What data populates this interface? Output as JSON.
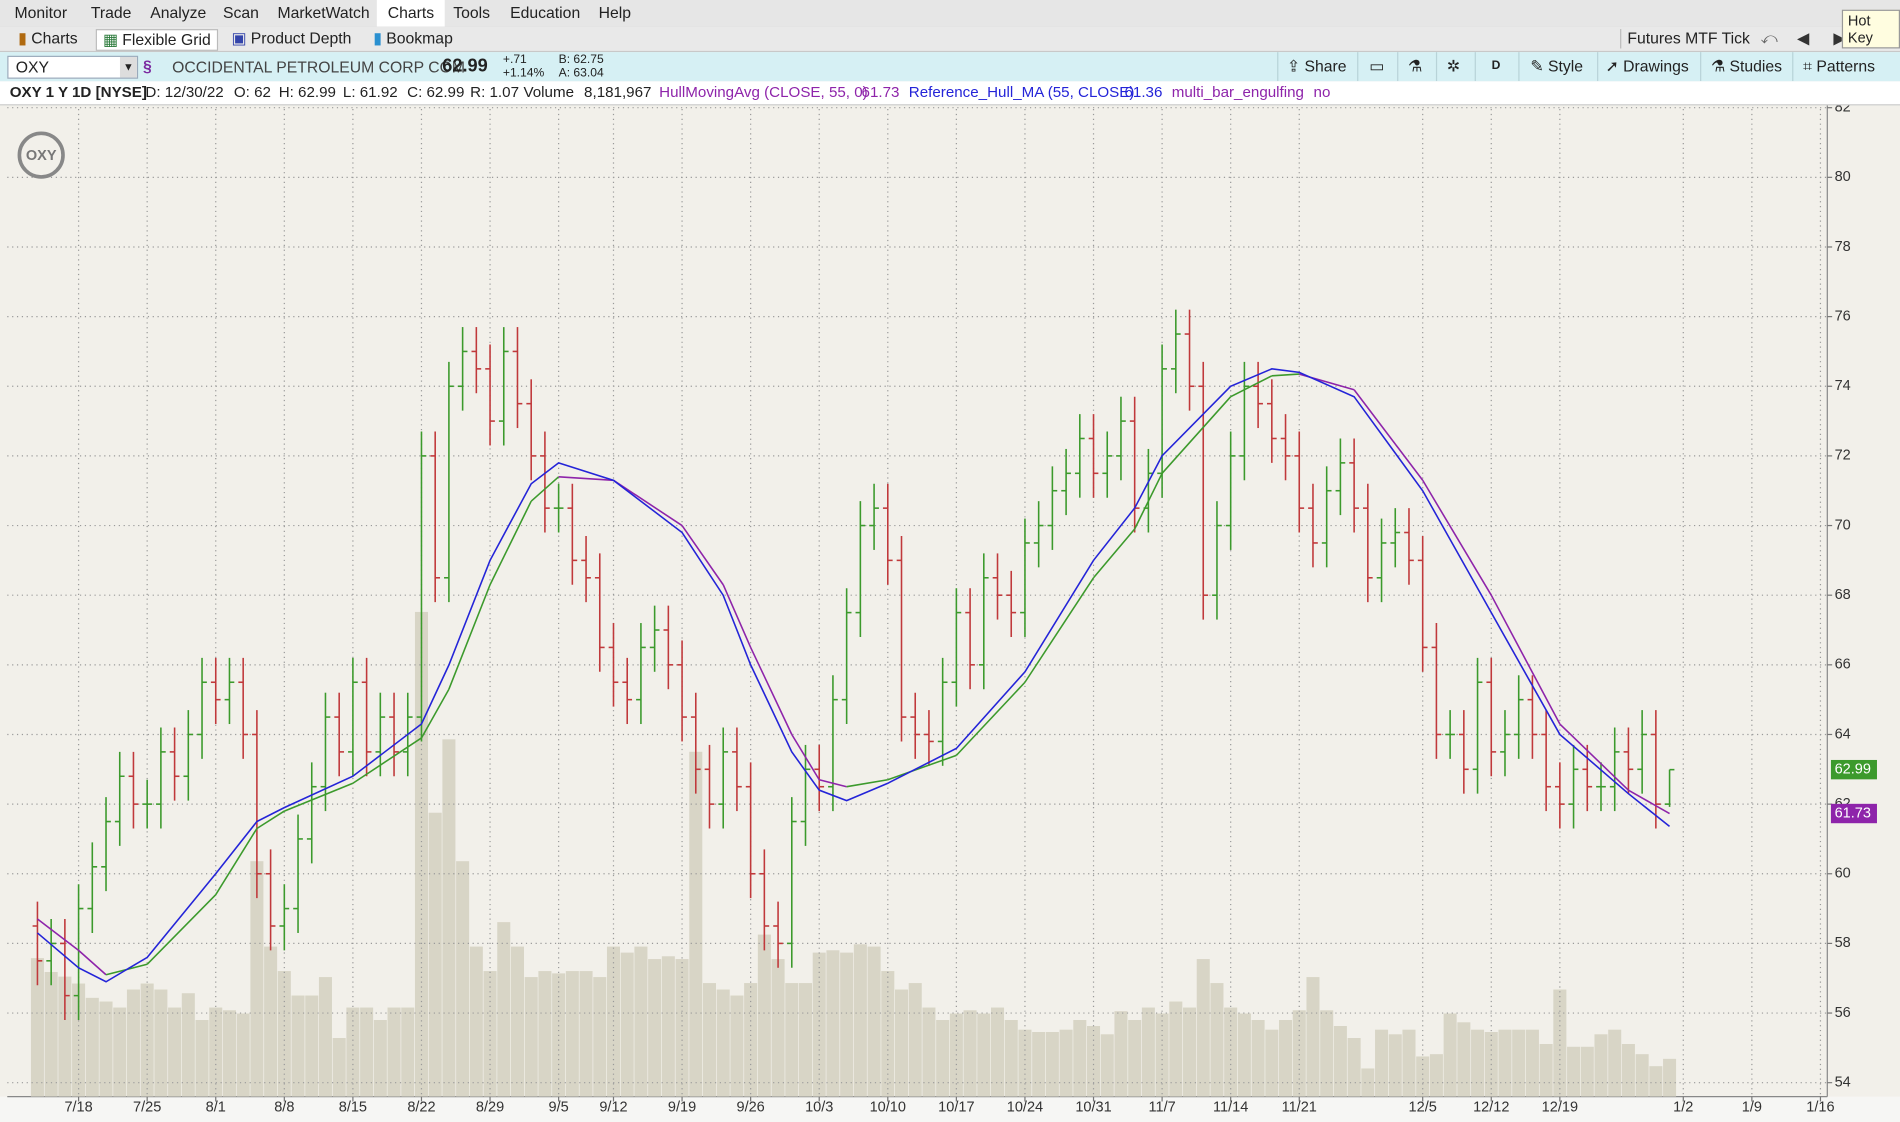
{
  "menu": [
    "Monitor",
    "Trade",
    "Analyze",
    "Scan",
    "MarketWatch",
    "Charts",
    "Tools",
    "Education",
    "Help"
  ],
  "hot_key": "Hot Key",
  "tabs": [
    "Charts",
    "Flexible Grid",
    "Product Depth",
    "Bookmap"
  ],
  "futures_label": "Futures MTF Tick",
  "toolbar": {
    "symbol": "OXY",
    "company": "OCCIDENTAL PETROLEUM CORP COM",
    "last": "62.99",
    "change": "+.71",
    "change_pct": "+1.14%",
    "bid": "B: 62.75",
    "ask": "A: 63.04",
    "buttons": [
      "Share",
      "D",
      "Style",
      "Drawings",
      "Studies",
      "Patterns"
    ]
  },
  "info": {
    "title": "OXY 1 Y 1D [NYSE]",
    "date": "D: 12/30/22",
    "open": "O: 62",
    "high": "H: 62.99",
    "low": "L: 61.92",
    "close": "C: 62.99",
    "range": "R: 1.07",
    "volume_label": "Volume",
    "volume": "8,181,967",
    "engulfing": "multi_bar_engulfing",
    "engulfing_value": "no"
  },
  "logo": "OXY",
  "chart_data": {
    "type": "ohlc",
    "up_color": "#3c9a2c",
    "down_color": "#c0393b",
    "volume_color": "#d8d5c6",
    "xlim": [
      -2.2,
      130.5
    ],
    "ylim": [
      53.6,
      82.1
    ],
    "yticks": [
      54,
      56,
      58,
      60,
      62,
      64,
      66,
      68,
      70,
      72,
      74,
      76,
      78,
      80,
      82
    ],
    "xticks": [
      {
        "value": 3,
        "label": "7/18"
      },
      {
        "value": 8,
        "label": "7/25"
      },
      {
        "value": 13,
        "label": "8/1"
      },
      {
        "value": 18,
        "label": "8/8"
      },
      {
        "value": 23,
        "label": "8/15"
      },
      {
        "value": 28,
        "label": "8/22"
      },
      {
        "value": 33,
        "label": "8/29"
      },
      {
        "value": 38,
        "label": "9/5"
      },
      {
        "value": 42,
        "label": "9/12"
      },
      {
        "value": 47,
        "label": "9/19"
      },
      {
        "value": 52,
        "label": "9/26"
      },
      {
        "value": 57,
        "label": "10/3"
      },
      {
        "value": 62,
        "label": "10/10"
      },
      {
        "value": 67,
        "label": "10/17"
      },
      {
        "value": 72,
        "label": "10/24"
      },
      {
        "value": 77,
        "label": "10/31"
      },
      {
        "value": 82,
        "label": "11/7"
      },
      {
        "value": 87,
        "label": "11/14"
      },
      {
        "value": 92,
        "label": "11/21"
      },
      {
        "value": 101,
        "label": "12/5"
      },
      {
        "value": 106,
        "label": "12/12"
      },
      {
        "value": 111,
        "label": "12/19"
      },
      {
        "value": 120,
        "label": "1/2"
      },
      {
        "value": 125,
        "label": "1/9"
      },
      {
        "value": 130,
        "label": "1/16"
      }
    ],
    "grid": true,
    "open": [
      58.5,
      57.5,
      58,
      56.5,
      59,
      60.2,
      61.5,
      62.8,
      62,
      62,
      63.5,
      62.8,
      64,
      65.5,
      65,
      65.5,
      64,
      60,
      58.5,
      59,
      61,
      62.5,
      64.5,
      63.5,
      65.5,
      63.5,
      64.5,
      63.5,
      64.5,
      72,
      68.5,
      74,
      75,
      74.5,
      73,
      75,
      73.5,
      72,
      70.5,
      70.5,
      69,
      68.5,
      66.5,
      65.5,
      65,
      66.5,
      67,
      66,
      64.5,
      63,
      62,
      63.5,
      62.5,
      60,
      58.5,
      58,
      61.5,
      63,
      62.5,
      65,
      67.5,
      70,
      70.5,
      69,
      64.5,
      64,
      63.8,
      65.5,
      67.5,
      66,
      68.5,
      68,
      67.5,
      69.5,
      70,
      71,
      71.5,
      72.5,
      71.5,
      72,
      73,
      70.5,
      71.5,
      74.5,
      75.5,
      74,
      68,
      70,
      72,
      74,
      73.5,
      72.5,
      72,
      70.5,
      69.5,
      71,
      71.8,
      70.5,
      68.5,
      69.5,
      69.8,
      69,
      66.5,
      64,
      64,
      63,
      65.5,
      63.5,
      64,
      65,
      64,
      62.5,
      62,
      63,
      62.5,
      62.5,
      63.5,
      63,
      64,
      62
    ],
    "high": [
      59.2,
      58.7,
      58.7,
      59.7,
      60.9,
      62.2,
      63.5,
      63.5,
      62.7,
      64.2,
      64.2,
      64.7,
      66.2,
      66.2,
      66.2,
      66.2,
      64.7,
      60.7,
      59.7,
      61.7,
      63.2,
      65.2,
      65.2,
      66.2,
      66.2,
      65.2,
      65.2,
      65.2,
      72.7,
      72.7,
      74.7,
      75.7,
      75.7,
      75.2,
      75.7,
      75.7,
      74.2,
      72.7,
      71.2,
      71.2,
      69.7,
      69.2,
      67.2,
      66.2,
      67.2,
      67.7,
      67.7,
      66.7,
      65.2,
      63.7,
      64.2,
      64.2,
      63.2,
      60.7,
      59.2,
      62.2,
      63.7,
      63.7,
      65.7,
      68.2,
      70.7,
      71.2,
      71.2,
      69.7,
      65.2,
      64.7,
      66.2,
      68.2,
      68.2,
      69.2,
      69.2,
      68.7,
      70.2,
      70.7,
      71.7,
      72.2,
      73.2,
      73.2,
      72.7,
      73.7,
      73.7,
      72.2,
      75.2,
      76.2,
      76.2,
      74.7,
      70.7,
      72.7,
      74.7,
      74.7,
      74.2,
      73.2,
      72.7,
      71.2,
      71.7,
      72.5,
      72.5,
      71.2,
      70.2,
      70.5,
      70.5,
      69.7,
      67.2,
      64.7,
      64.7,
      66.2,
      66.2,
      64.7,
      65.7,
      65.7,
      64.7,
      63.2,
      63.7,
      63.7,
      63.2,
      64.2,
      64.2,
      64.7,
      64.7,
      62.99
    ],
    "low": [
      56.8,
      56.8,
      55.8,
      55.8,
      58.3,
      59.5,
      60.8,
      61.3,
      61.3,
      61.3,
      62.1,
      62.1,
      63.3,
      64.3,
      64.3,
      63.3,
      59.3,
      57.8,
      57.8,
      58.3,
      60.3,
      61.8,
      62.8,
      62.8,
      62.8,
      62.8,
      62.8,
      62.8,
      63.8,
      67.8,
      67.8,
      73.3,
      73.8,
      72.3,
      72.3,
      72.8,
      71.3,
      69.8,
      69.8,
      68.3,
      67.8,
      65.8,
      64.8,
      64.3,
      64.3,
      65.8,
      65.3,
      63.8,
      62.3,
      61.3,
      61.3,
      61.8,
      59.3,
      57.8,
      57.3,
      57.3,
      60.8,
      61.8,
      61.8,
      64.3,
      66.8,
      69.3,
      68.3,
      63.8,
      63.3,
      63.1,
      63.1,
      64.8,
      65.3,
      65.3,
      67.3,
      66.8,
      66.8,
      68.8,
      69.3,
      70.3,
      70.8,
      70.8,
      70.8,
      71.3,
      69.8,
      69.8,
      70.8,
      73.8,
      73.3,
      67.3,
      67.3,
      69.3,
      71.3,
      72.8,
      71.8,
      71.3,
      69.8,
      68.8,
      68.8,
      70.3,
      69.8,
      67.8,
      67.8,
      68.8,
      68.3,
      65.8,
      63.3,
      63.3,
      62.3,
      62.3,
      62.8,
      62.8,
      63.3,
      63.3,
      61.8,
      61.3,
      61.3,
      61.8,
      61.8,
      61.8,
      62.3,
      62.3,
      61.3,
      61.92
    ],
    "close": [
      57.5,
      58,
      56.5,
      59,
      60.2,
      61.5,
      62.8,
      62,
      62,
      63.5,
      62.8,
      64,
      65.5,
      65,
      65.5,
      64,
      60,
      58.5,
      59,
      61,
      62.5,
      64.5,
      63.5,
      65.5,
      63.5,
      64.5,
      63.5,
      64.5,
      72,
      68.5,
      74,
      75,
      74.5,
      73,
      75,
      73.5,
      72,
      70.5,
      70.5,
      69,
      68.5,
      66.5,
      65.5,
      65,
      66.5,
      67,
      66,
      64.5,
      63,
      62,
      63.5,
      62.5,
      60,
      58.5,
      58,
      61.5,
      63,
      62.5,
      65,
      67.5,
      70,
      70.5,
      69,
      64.5,
      64,
      63.8,
      65.5,
      67.5,
      66,
      68.5,
      68,
      67.5,
      69.5,
      70,
      71,
      71.5,
      72.5,
      71.5,
      72,
      73,
      70.5,
      71.5,
      74.5,
      75.5,
      74,
      68,
      70,
      72,
      74,
      73.5,
      72.5,
      72,
      70.5,
      69.5,
      71,
      71.8,
      70.5,
      68.5,
      69.5,
      69.8,
      69,
      66.5,
      64,
      64,
      63,
      65.5,
      63.5,
      64,
      65,
      64,
      62.5,
      62,
      63,
      62.5,
      62.5,
      63.5,
      63,
      64,
      62,
      62.99
    ],
    "volume": [
      30000000,
      27000000,
      26000000,
      24500000,
      21400000,
      20600000,
      19300000,
      23200000,
      24500000,
      23200000,
      19300000,
      22400000,
      16600000,
      19300000,
      18700000,
      18000000,
      51000000,
      32500000,
      27200000,
      21900000,
      21900000,
      25900000,
      12700000,
      19300000,
      19300000,
      16600000,
      19300000,
      19300000,
      105000000,
      61500000,
      77400000,
      51000000,
      32500000,
      27200000,
      37800000,
      32500000,
      25900000,
      27200000,
      26700000,
      27200000,
      27200000,
      25900000,
      32500000,
      31200000,
      32500000,
      29800000,
      30400000,
      29800000,
      74700000,
      24600000,
      23200000,
      21900000,
      24600000,
      35100000,
      29800000,
      24600000,
      24600000,
      31200000,
      31700000,
      31200000,
      33000000,
      32500000,
      27200000,
      23200000,
      24600000,
      19300000,
      16600000,
      18000000,
      18700000,
      18000000,
      19300000,
      16600000,
      14500000,
      14000000,
      14000000,
      14500000,
      16600000,
      15300000,
      13500000,
      18500000,
      16600000,
      19300000,
      18000000,
      20600000,
      19300000,
      29800000,
      24600000,
      19300000,
      18000000,
      16600000,
      14500000,
      16600000,
      18700000,
      25900000,
      18700000,
      15300000,
      12700000,
      6100000,
      14500000,
      13500000,
      14500000,
      8700000,
      9200000,
      18000000,
      16100000,
      14500000,
      14000000,
      14500000,
      14500000,
      14500000,
      11400000,
      23200000,
      10800000,
      10800000,
      13500000,
      14500000,
      11400000,
      9200000,
      6600000,
      8181967
    ],
    "series": [
      {
        "name": "HullMovingAvg (CLOSE, 55, 0)",
        "up_color": "#3c9a2c",
        "down_color": "#8e24aa",
        "x": [
          0,
          3,
          5,
          8,
          13,
          16,
          18,
          23,
          28,
          30,
          33,
          36,
          38,
          42,
          47,
          50,
          52,
          55,
          57,
          59,
          62,
          67,
          72,
          77,
          80,
          82,
          87,
          90,
          92,
          96,
          101,
          106,
          111,
          116,
          119
        ],
        "values": [
          58.7,
          57.8,
          57.1,
          57.4,
          59.4,
          61.3,
          61.8,
          62.6,
          63.9,
          65.3,
          68.3,
          70.7,
          71.4,
          71.3,
          70,
          68.3,
          66.5,
          64,
          62.7,
          62.5,
          62.7,
          63.4,
          65.5,
          68.5,
          69.9,
          71.5,
          73.7,
          74.3,
          74.35,
          73.9,
          71.3,
          68,
          64.3,
          62.4,
          61.73
        ]
      },
      {
        "name": "Reference_Hull_MA (55, CLOSE)",
        "color": "#2424d8",
        "x": [
          0,
          3,
          5,
          8,
          13,
          16,
          18,
          23,
          28,
          30,
          33,
          36,
          38,
          42,
          47,
          50,
          52,
          55,
          57,
          59,
          62,
          67,
          72,
          77,
          80,
          82,
          87,
          90,
          92,
          96,
          101,
          106,
          111,
          116,
          119
        ],
        "values": [
          58.3,
          57.3,
          56.9,
          57.6,
          60,
          61.5,
          61.9,
          62.8,
          64.3,
          66,
          69,
          71.2,
          71.8,
          71.3,
          69.8,
          68,
          66,
          63.5,
          62.4,
          62.1,
          62.6,
          63.6,
          65.8,
          69,
          70.5,
          72,
          74,
          74.5,
          74.4,
          73.7,
          71,
          67.5,
          64,
          62.3,
          61.36
        ]
      }
    ]
  }
}
